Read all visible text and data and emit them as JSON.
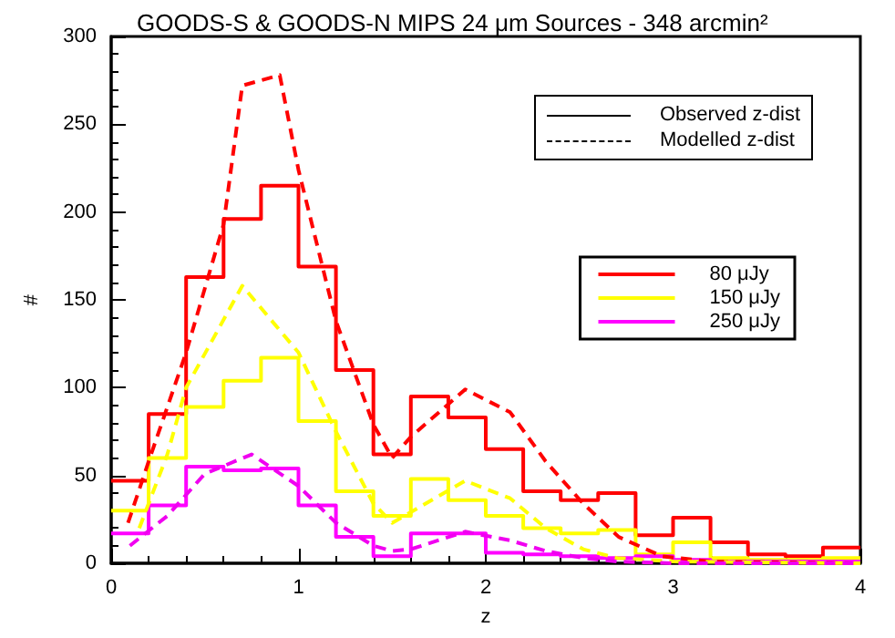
{
  "chart_data": {
    "type": "histogram",
    "title": "GOODS-S & GOODS-N MIPS 24 μm Sources - 348 arcmin²",
    "xlabel": "z",
    "ylabel": "#",
    "bins": [
      0,
      0.2,
      0.4,
      0.6,
      0.8,
      1.0,
      1.2,
      1.4,
      1.6,
      1.8,
      2.0,
      2.2,
      2.4,
      2.6,
      2.8,
      3.0,
      3.2,
      3.4,
      3.6,
      3.8,
      4.0
    ],
    "series": [
      {
        "name": "80 μJy",
        "color": "#ff0000",
        "values": [
          47,
          85,
          163,
          196,
          215,
          169,
          110,
          62,
          95,
          83,
          65,
          41,
          36,
          40,
          16,
          26,
          12,
          5,
          4,
          9
        ]
      },
      {
        "name": "150 μJy",
        "color": "#ffff00",
        "values": [
          30,
          60,
          89,
          104,
          117,
          81,
          41,
          27,
          48,
          36,
          27,
          20,
          17,
          19,
          5,
          12,
          3,
          2,
          2,
          3
        ]
      },
      {
        "name": "250 μJy",
        "color": "#ff00ff",
        "values": [
          17,
          33,
          55,
          53,
          54,
          33,
          15,
          4,
          17,
          17,
          6,
          5,
          4,
          3,
          4,
          2,
          1,
          1,
          1,
          1
        ]
      },
      {
        "type": "line",
        "line_style": "dashed",
        "color": "#ff0000",
        "x": [
          0.09,
          0.2,
          0.4,
          0.6,
          0.7,
          0.9,
          1.0,
          1.2,
          1.4,
          1.5,
          1.6,
          1.89,
          2.13,
          2.32,
          2.52,
          2.71,
          2.94,
          3.2,
          4.0
        ],
        "values": [
          23,
          58,
          120,
          193,
          272,
          278,
          224,
          138,
          79,
          60,
          72,
          99,
          86,
          58,
          34,
          15,
          4,
          1,
          0
        ]
      },
      {
        "type": "line",
        "line_style": "dashed",
        "color": "#ffff00",
        "x": [
          0.15,
          0.3,
          0.4,
          0.7,
          1.0,
          1.2,
          1.4,
          1.5,
          1.89,
          2.13,
          2.32,
          2.52,
          2.7,
          3.0,
          4.0
        ],
        "values": [
          20,
          62,
          100,
          158,
          120,
          75,
          34,
          23,
          47,
          37,
          20,
          8,
          3,
          1,
          0
        ]
      },
      {
        "type": "line",
        "line_style": "dashed",
        "color": "#f000f0",
        "x": [
          0.1,
          0.3,
          0.5,
          0.75,
          1.0,
          1.2,
          1.4,
          1.5,
          1.6,
          1.89,
          2.13,
          2.32,
          2.52,
          2.7,
          3.0,
          4.0
        ],
        "values": [
          10,
          27,
          51,
          62,
          44,
          23,
          10,
          7,
          8,
          18,
          13,
          7,
          3,
          1,
          0,
          0
        ]
      }
    ],
    "annotations": [
      "Observed z-dist",
      "Modelled z-dist"
    ],
    "xlim": [
      0,
      4
    ],
    "xticks": [
      0,
      1,
      2,
      3,
      4
    ],
    "ylim": [
      0,
      300
    ],
    "yticks": [
      0,
      50,
      100,
      150,
      200,
      250,
      300
    ],
    "grid": false,
    "legend": "top right",
    "marker": "none"
  }
}
